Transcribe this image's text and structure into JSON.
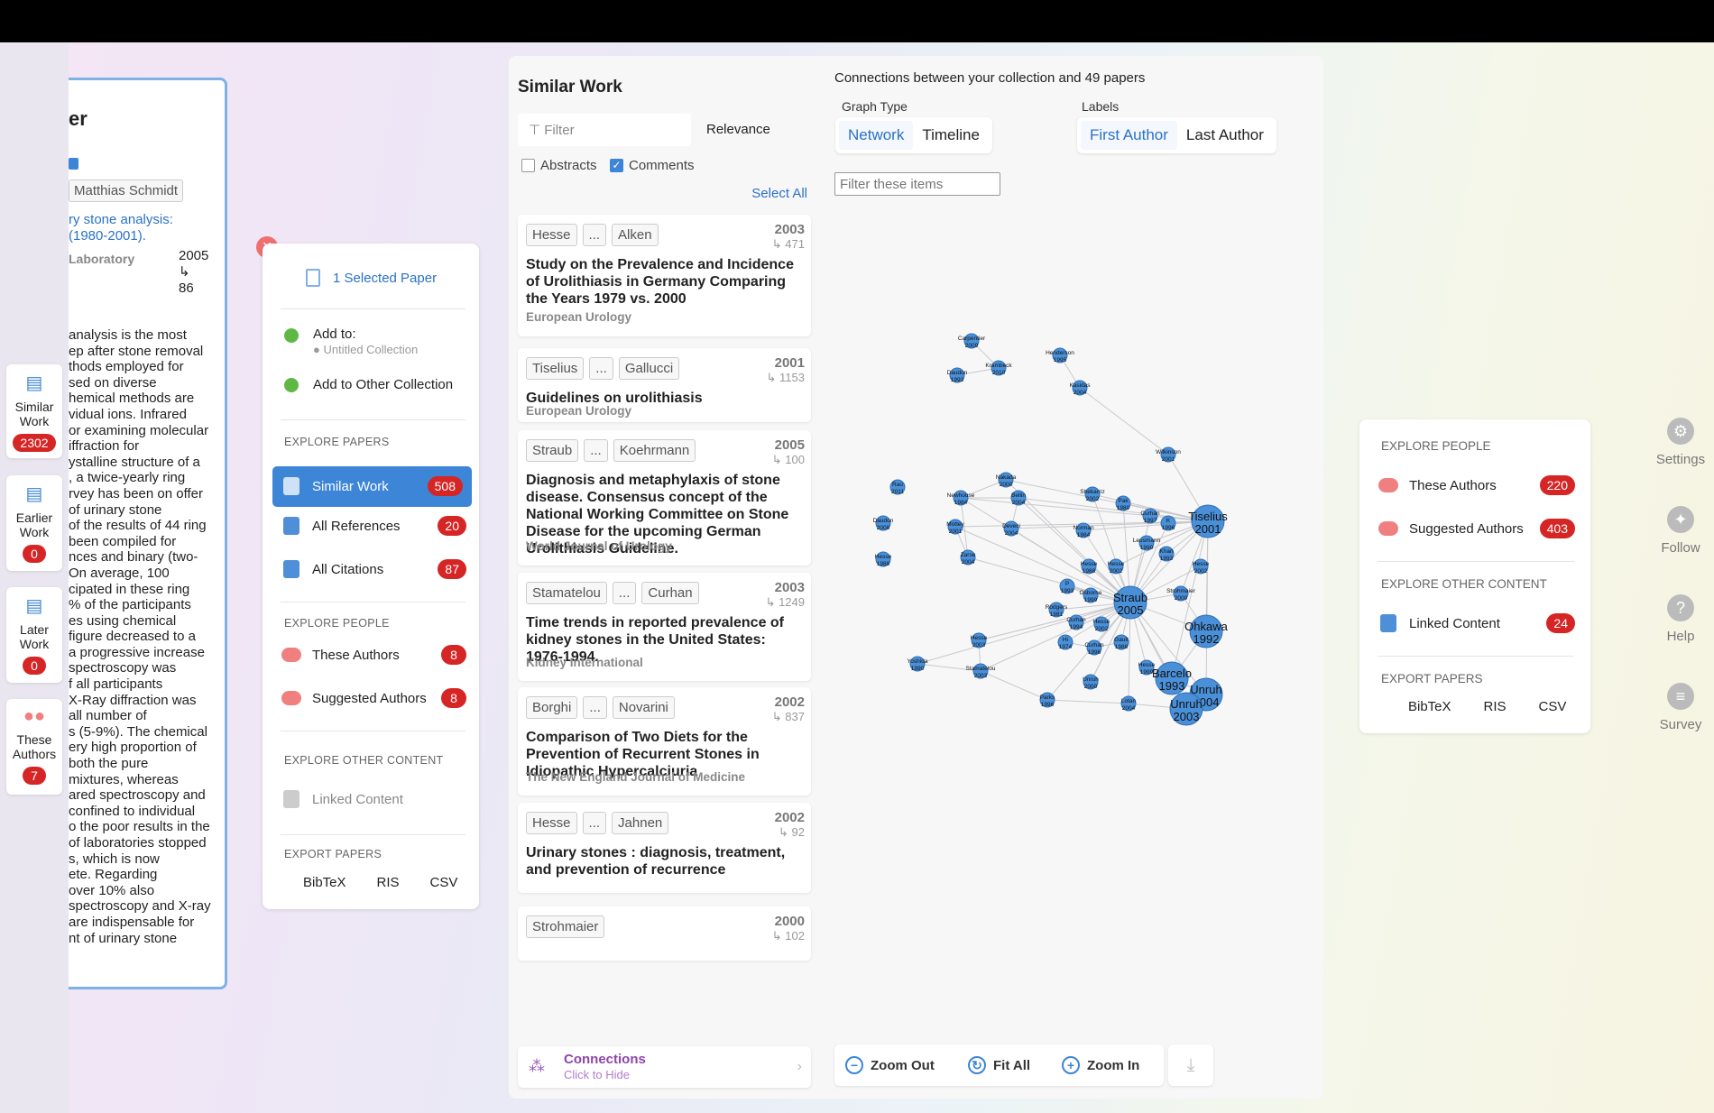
{
  "left_nav": [
    {
      "label": "Similar Work",
      "badge": "2302"
    },
    {
      "label": "Earlier Work",
      "badge": "0"
    },
    {
      "label": "Later Work",
      "badge": "0"
    },
    {
      "label": "These Authors",
      "badge": "7"
    }
  ],
  "paper": {
    "title_fragment": "er",
    "author": "Matthias Schmidt",
    "link_line1": "ry stone analysis:",
    "link_line2": "(1980-2001).",
    "label": "Laboratory",
    "year": "2005",
    "cite_arrow": "↳",
    "cites": "86",
    "abstract_lines": [
      "analysis is the most",
      "ep after stone removal",
      "thods employed for",
      "sed on diverse",
      "hemical methods are",
      "vidual ions. Infrared",
      "or examining molecular",
      "iffraction for",
      "ystalline structure of a",
      ", a twice-yearly ring",
      "rvey has been on offer",
      "of urinary stone",
      "of the results of 44 ring",
      "been compiled for",
      "nces and binary (two-",
      "On average, 100",
      "cipated in these ring",
      "% of the participants",
      "es using chemical",
      "figure decreased to a",
      "a progressive increase",
      "spectroscopy was",
      "f all participants",
      "X-Ray diffraction was",
      "all number of",
      "s (5-9%). The chemical",
      "ery high proportion of",
      "both the pure",
      "mixtures, whereas",
      "ared spectroscopy and",
      "confined to individual",
      "o the poor results in the",
      "of laboratories stopped",
      "s, which is now",
      "ete. Regarding",
      "over 10% also",
      "spectroscopy and X-ray",
      "are indispensable for",
      "nt of urinary stone"
    ]
  },
  "menu": {
    "selected": "1 Selected Paper",
    "add_to": "Add to:",
    "untitled": "Untitled Collection",
    "add_other": "Add to Other Collection",
    "explore_papers": "EXPLORE PAPERS",
    "similar": {
      "label": "Similar Work",
      "badge": "508"
    },
    "references": {
      "label": "All References",
      "badge": "20"
    },
    "citations": {
      "label": "All Citations",
      "badge": "87"
    },
    "explore_people": "EXPLORE PEOPLE",
    "these_authors": {
      "label": "These Authors",
      "badge": "8"
    },
    "suggested": {
      "label": "Suggested Authors",
      "badge": "8"
    },
    "explore_other": "EXPLORE OTHER CONTENT",
    "linked": "Linked Content",
    "export": "EXPORT PAPERS",
    "formats": [
      "BibTeX",
      "RIS",
      "CSV"
    ]
  },
  "similar_work": {
    "title": "Similar Work",
    "filter_placeholder": "Filter",
    "sort": "Relevance",
    "abstracts": "Abstracts",
    "comments": "Comments",
    "select_all": "Select All",
    "items": [
      {
        "a1": "Hesse",
        "a2": "Alken",
        "year": "2003",
        "cites": "↳ 471",
        "title": "Study on the Prevalence and Incidence of Urolithiasis in Germany Comparing the Years 1979 vs. 2000",
        "journal": "European Urology"
      },
      {
        "a1": "Tiselius",
        "a2": "Gallucci",
        "year": "2001",
        "cites": "↳ 1153",
        "title": "Guidelines on urolithiasis",
        "journal": "European Urology"
      },
      {
        "a1": "Straub",
        "a2": "Koehrmann",
        "year": "2005",
        "cites": "↳ 100",
        "title": "Diagnosis and metaphylaxis of stone disease. Consensus concept of the National Working Committee on Stone Disease for the upcoming German Urolithiasis Guideline.",
        "journal": "World Journal of Urology"
      },
      {
        "a1": "Stamatelou",
        "a2": "Curhan",
        "year": "2003",
        "cites": "↳ 1249",
        "title": "Time trends in reported prevalence of kidney stones in the United States: 1976-1994.",
        "journal": "Kidney International"
      },
      {
        "a1": "Borghi",
        "a2": "Novarini",
        "year": "2002",
        "cites": "↳ 837",
        "title": "Comparison of Two Diets for the Prevention of Recurrent Stones in Idiopathic Hypercalciuria",
        "journal": "The New England Journal of Medicine"
      },
      {
        "a1": "Hesse",
        "a2": "Jahnen",
        "year": "2002",
        "cites": "↳ 92",
        "title": "Urinary stones : diagnosis, treatment, and prevention of recurrence",
        "journal": ""
      },
      {
        "a1": "Strohmaier",
        "a2": "",
        "year": "2000",
        "cites": "↳ 102",
        "title": "",
        "journal": ""
      }
    ],
    "ellipsis": "...",
    "connections": "Connections",
    "click_hide": "Click to Hide"
  },
  "graph": {
    "header": "Connections between your collection and 49 papers",
    "graph_type_label": "Graph Type",
    "labels_label": "Labels",
    "network": "Network",
    "timeline": "Timeline",
    "first_author": "First Author",
    "last_author": "Last Author",
    "filter_placeholder": "Filter these items",
    "zoom_out": "Zoom Out",
    "fit_all": "Fit All",
    "zoom_in": "Zoom In",
    "nodes": [
      {
        "n": "Carpentier",
        "y": "2009",
        "big": 0
      },
      {
        "n": "Henderson",
        "y": "1995",
        "big": 0
      },
      {
        "n": "Daudon",
        "y": "1993",
        "big": 0
      },
      {
        "n": "Krambeck",
        "y": "2010",
        "big": 0
      },
      {
        "n": "Kasidas",
        "y": "2004",
        "big": 0
      },
      {
        "n": "Wilkinson",
        "y": "2001",
        "big": 0
      },
      {
        "n": "Rao",
        "y": "2011",
        "big": 0
      },
      {
        "n": "Nakada",
        "y": "2000",
        "big": 0
      },
      {
        "n": "Newhouse",
        "y": "1984",
        "big": 0
      },
      {
        "n": "Bellin",
        "y": "2004",
        "big": 0
      },
      {
        "n": "Shekarriz",
        "y": "2002",
        "big": 0
      },
      {
        "n": "Pak",
        "y": "1980",
        "big": 0
      },
      {
        "n": "Curhan",
        "y": "1997",
        "big": 0
      },
      {
        "n": "Tiselius",
        "y": "2001",
        "big": 1
      },
      {
        "n": "Daudon",
        "y": "2008",
        "big": 0
      },
      {
        "n": "Mottey",
        "y": "2001",
        "big": 0
      },
      {
        "n": "Deveci",
        "y": "2004",
        "big": 0
      },
      {
        "n": "Norman",
        "y": "1984",
        "big": 0
      },
      {
        "n": "Leusmann",
        "y": "1990",
        "big": 0
      },
      {
        "n": "K",
        "y": "1996",
        "big": 0
      },
      {
        "n": "Hesse",
        "y": "1988",
        "big": 0
      },
      {
        "n": "Zarse",
        "y": "2004",
        "big": 0
      },
      {
        "n": "Khan",
        "y": "1993",
        "big": 0
      },
      {
        "n": "Hesse",
        "y": "1988",
        "big": 0
      },
      {
        "n": "Hesse",
        "y": "2002",
        "big": 0
      },
      {
        "n": "Hesse",
        "y": "2002",
        "big": 0
      },
      {
        "n": "P",
        "y": "1993",
        "big": 0
      },
      {
        "n": "Osborne",
        "y": "1999",
        "big": 0
      },
      {
        "n": "Strohmaier",
        "y": "2000",
        "big": 0
      },
      {
        "n": "Straub",
        "y": "2005",
        "big": 1
      },
      {
        "n": "Rodgers",
        "y": "1981",
        "big": 0
      },
      {
        "n": "Curhan",
        "y": "1994",
        "big": 0
      },
      {
        "n": "Hesse",
        "y": "2002",
        "big": 0
      },
      {
        "n": "Ohkawa",
        "y": "1992",
        "big": 1
      },
      {
        "n": "Hesse",
        "y": "2003",
        "big": 0
      },
      {
        "n": "Hi",
        "y": "1974",
        "big": 0
      },
      {
        "n": "Curhan",
        "y": "1996",
        "big": 0
      },
      {
        "n": "Gault",
        "y": "1988",
        "big": 0
      },
      {
        "n": "Yoshida",
        "y": "1990",
        "big": 0
      },
      {
        "n": "Stamatelou",
        "y": "2003",
        "big": 0
      },
      {
        "n": "Hesse",
        "y": "1999",
        "big": 0
      },
      {
        "n": "Barcelo",
        "y": "1993",
        "big": 1
      },
      {
        "n": "Unruh",
        "y": "2000",
        "big": 0
      },
      {
        "n": "Unruh",
        "y": "2004",
        "big": 1
      },
      {
        "n": "Parks",
        "y": "1996",
        "big": 0
      },
      {
        "n": "Lotan",
        "y": "2004",
        "big": 0
      },
      {
        "n": "Unruh",
        "y": "2003",
        "big": 1
      }
    ]
  },
  "right_panel": {
    "explore_people": "EXPLORE PEOPLE",
    "these_authors": {
      "label": "These Authors",
      "badge": "220"
    },
    "suggested": {
      "label": "Suggested Authors",
      "badge": "403"
    },
    "explore_other": "EXPLORE OTHER CONTENT",
    "linked": {
      "label": "Linked Content",
      "badge": "24"
    },
    "export": "EXPORT PAPERS",
    "formats": [
      "BibTeX",
      "RIS",
      "CSV"
    ]
  },
  "side_nav": [
    "Settings",
    "Follow",
    "Help",
    "Survey"
  ],
  "colors": {
    "accent": "#2a72c8",
    "badge": "#d62525",
    "node": "#4a90d9"
  }
}
